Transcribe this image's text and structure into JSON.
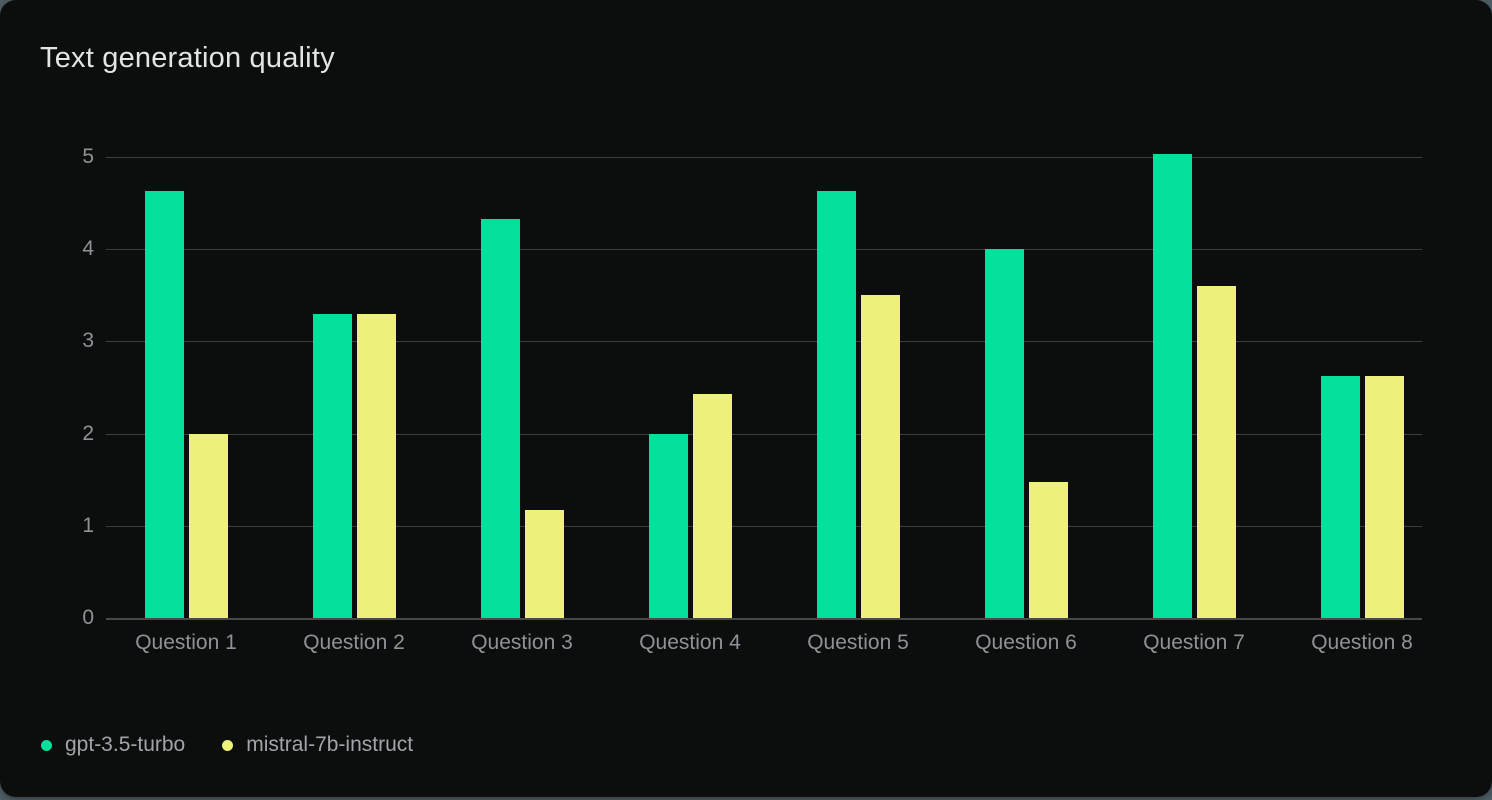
{
  "title": "Text generation quality",
  "colors": {
    "card_background": "#0c0e0d",
    "page_background": "#4e5e66",
    "gridline": "#3a3f3d",
    "axis_label": "#8e9397",
    "legend_label": "#a0a5a9",
    "title_text": "#e2e5e3"
  },
  "chart_data": {
    "type": "bar",
    "title": "Text generation quality",
    "categories": [
      "Question 1",
      "Question 2",
      "Question 3",
      "Question 4",
      "Question 5",
      "Question 6",
      "Question 7",
      "Question 8"
    ],
    "series": [
      {
        "name": "gpt-3.5-turbo",
        "color": "#04e09b",
        "values": [
          4.63,
          3.3,
          4.33,
          2.0,
          4.63,
          4.0,
          5.03,
          2.63
        ]
      },
      {
        "name": "mistral-7b-instruct",
        "color": "#eef07c",
        "values": [
          2.0,
          3.3,
          1.17,
          2.43,
          3.5,
          1.47,
          3.6,
          2.63
        ]
      }
    ],
    "xlabel": "",
    "ylabel": "",
    "ylim": [
      0,
      5
    ],
    "yticks": [
      0,
      1,
      2,
      3,
      4,
      5
    ],
    "grid": true,
    "legend_position": "bottom-left"
  }
}
